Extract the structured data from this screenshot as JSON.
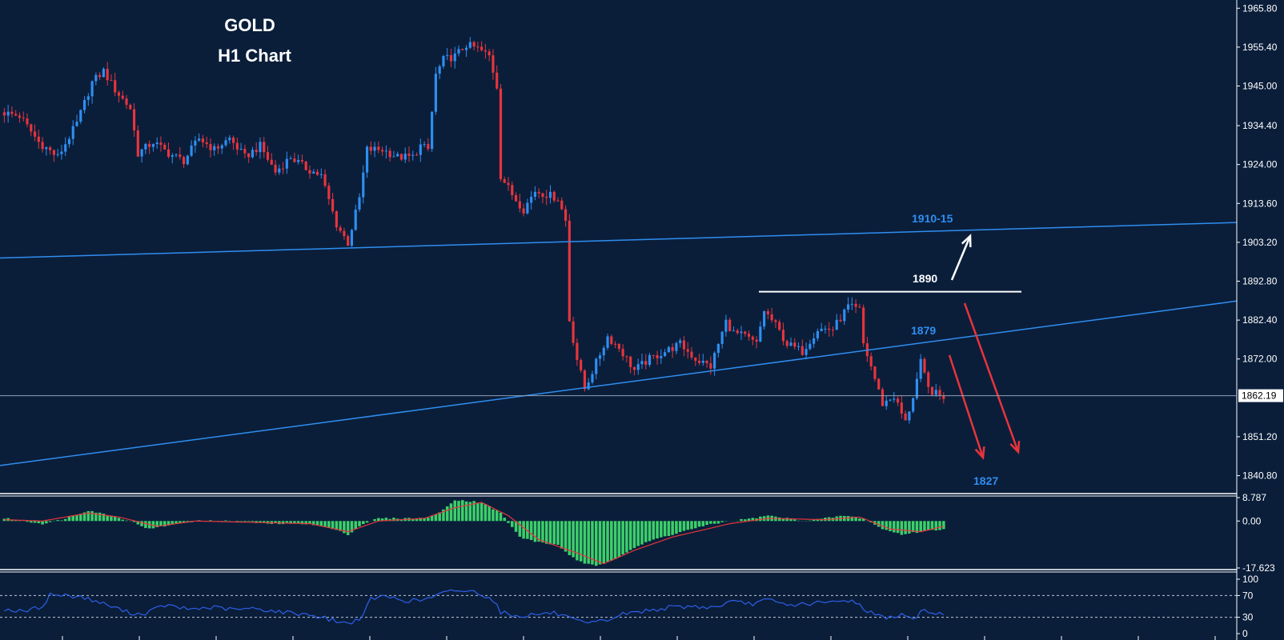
{
  "title": {
    "line1": "GOLD",
    "line2": "H1 Chart"
  },
  "colors": {
    "background": "#0a1e3a",
    "bull_candle": "#2f8ef0",
    "bear_candle": "#e8343c",
    "trendline": "#2f8ef0",
    "level_label": "#2f8ef0",
    "resistance_line": "#ffffff",
    "histogram": "#3ccf6a",
    "signal_line": "#e8343c",
    "rsi_line": "#2f5ee8",
    "separator": "#ffffff",
    "current_price_line": "#8fa0b8"
  },
  "price_axis": {
    "ticks": [
      "1965.80",
      "1955.40",
      "1945.00",
      "1934.40",
      "1924.00",
      "1913.60",
      "1903.20",
      "1892.80",
      "1882.40",
      "1872.00",
      "1851.20",
      "1840.80"
    ],
    "current_price": "1862.19"
  },
  "macd_axis": {
    "ticks": [
      "8.787",
      "0.00",
      "-17.623"
    ]
  },
  "rsi_axis": {
    "ticks": [
      "100",
      "70",
      "30",
      "0"
    ]
  },
  "annotations": {
    "upper_channel": "1910-15",
    "resistance": "1890",
    "trendline_level": "1879",
    "target": "1827"
  },
  "chart_data": [
    {
      "type": "candlestick",
      "title": "GOLD H1 Chart",
      "ylim": [
        1836,
        1968
      ],
      "price_path": [
        [
          0,
          1938
        ],
        [
          5,
          1937
        ],
        [
          10,
          1930
        ],
        [
          15,
          1926
        ],
        [
          20,
          1935
        ],
        [
          24,
          1946
        ],
        [
          27,
          1949
        ],
        [
          30,
          1944
        ],
        [
          34,
          1939
        ],
        [
          36,
          1927
        ],
        [
          40,
          1930
        ],
        [
          44,
          1927
        ],
        [
          48,
          1925
        ],
        [
          52,
          1931
        ],
        [
          56,
          1928
        ],
        [
          60,
          1931
        ],
        [
          64,
          1926
        ],
        [
          68,
          1929
        ],
        [
          72,
          1922
        ],
        [
          76,
          1926
        ],
        [
          80,
          1923
        ],
        [
          84,
          1921
        ],
        [
          88,
          1908
        ],
        [
          91,
          1903
        ],
        [
          94,
          1915
        ],
        [
          96,
          1928
        ],
        [
          100,
          1928
        ],
        [
          104,
          1926
        ],
        [
          108,
          1926
        ],
        [
          110,
          1929
        ],
        [
          112,
          1928
        ],
        [
          114,
          1948
        ],
        [
          116,
          1952
        ],
        [
          119,
          1953
        ],
        [
          122,
          1956
        ],
        [
          125,
          1955
        ],
        [
          128,
          1953
        ],
        [
          130,
          1945
        ],
        [
          131,
          1921
        ],
        [
          134,
          1916
        ],
        [
          137,
          1912
        ],
        [
          140,
          1917
        ],
        [
          143,
          1916
        ],
        [
          146,
          1915
        ],
        [
          148,
          1909
        ],
        [
          148.5,
          1885
        ],
        [
          151,
          1872
        ],
        [
          153,
          1864
        ],
        [
          156,
          1871
        ],
        [
          159,
          1878
        ],
        [
          162,
          1875
        ],
        [
          166,
          1869
        ],
        [
          170,
          1872
        ],
        [
          174,
          1874
        ],
        [
          178,
          1876
        ],
        [
          182,
          1872
        ],
        [
          186,
          1870
        ],
        [
          190,
          1882
        ],
        [
          192,
          1879
        ],
        [
          195,
          1878
        ],
        [
          198,
          1876
        ],
        [
          200,
          1885
        ],
        [
          203,
          1881
        ],
        [
          206,
          1876
        ],
        [
          210,
          1874
        ],
        [
          214,
          1880
        ],
        [
          218,
          1880
        ],
        [
          222,
          1886
        ],
        [
          225,
          1885
        ],
        [
          226,
          1876
        ],
        [
          228,
          1870
        ],
        [
          231,
          1860
        ],
        [
          234,
          1862
        ],
        [
          237,
          1855
        ],
        [
          239,
          1862
        ],
        [
          241,
          1871
        ],
        [
          243,
          1864
        ],
        [
          246,
          1862
        ]
      ],
      "n_bars": 247
    },
    {
      "type": "bar",
      "title": "",
      "ylim": [
        -17.623,
        8.787
      ],
      "values": [
        [
          0,
          1
        ],
        [
          10,
          -1
        ],
        [
          15,
          0.5
        ],
        [
          22,
          4
        ],
        [
          28,
          2
        ],
        [
          33,
          0
        ],
        [
          38,
          -3
        ],
        [
          45,
          -1
        ],
        [
          50,
          0
        ],
        [
          60,
          0
        ],
        [
          70,
          -1
        ],
        [
          80,
          -1
        ],
        [
          86,
          -3
        ],
        [
          90,
          -5
        ],
        [
          94,
          -1
        ],
        [
          98,
          1
        ],
        [
          104,
          1
        ],
        [
          110,
          1
        ],
        [
          114,
          3
        ],
        [
          118,
          8
        ],
        [
          125,
          7
        ],
        [
          130,
          3
        ],
        [
          135,
          -6
        ],
        [
          140,
          -8
        ],
        [
          145,
          -9
        ],
        [
          150,
          -15
        ],
        [
          155,
          -17
        ],
        [
          160,
          -14
        ],
        [
          165,
          -10
        ],
        [
          170,
          -7
        ],
        [
          175,
          -5
        ],
        [
          180,
          -3
        ],
        [
          186,
          -1
        ],
        [
          190,
          0
        ],
        [
          196,
          1
        ],
        [
          200,
          2
        ],
        [
          205,
          1
        ],
        [
          210,
          0
        ],
        [
          215,
          1
        ],
        [
          220,
          2
        ],
        [
          225,
          1
        ],
        [
          230,
          -3
        ],
        [
          235,
          -5
        ],
        [
          240,
          -4
        ],
        [
          246,
          -3
        ]
      ],
      "signal": [
        [
          0,
          0.5
        ],
        [
          10,
          0
        ],
        [
          22,
          3
        ],
        [
          30,
          1.5
        ],
        [
          40,
          -2
        ],
        [
          50,
          0
        ],
        [
          80,
          -1
        ],
        [
          90,
          -4
        ],
        [
          98,
          0
        ],
        [
          110,
          1
        ],
        [
          118,
          5
        ],
        [
          125,
          7
        ],
        [
          132,
          2
        ],
        [
          140,
          -7
        ],
        [
          150,
          -12
        ],
        [
          157,
          -16
        ],
        [
          165,
          -11
        ],
        [
          175,
          -6
        ],
        [
          190,
          -1
        ],
        [
          200,
          1
        ],
        [
          215,
          0.5
        ],
        [
          224,
          1.5
        ],
        [
          232,
          -3
        ],
        [
          240,
          -4
        ],
        [
          246,
          -2
        ]
      ]
    },
    {
      "type": "line",
      "title": "",
      "ylim": [
        0,
        100
      ],
      "series": [
        {
          "values": [
            [
              0,
              45
            ],
            [
              5,
              40
            ],
            [
              10,
              50
            ],
            [
              12,
              72
            ],
            [
              20,
              68
            ],
            [
              26,
              55
            ],
            [
              32,
              40
            ],
            [
              36,
              35
            ],
            [
              42,
              52
            ],
            [
              48,
              45
            ],
            [
              55,
              48
            ],
            [
              60,
              44
            ],
            [
              66,
              46
            ],
            [
              72,
              40
            ],
            [
              80,
              35
            ],
            [
              86,
              25
            ],
            [
              90,
              18
            ],
            [
              94,
              32
            ],
            [
              96,
              65
            ],
            [
              100,
              68
            ],
            [
              106,
              60
            ],
            [
              110,
              62
            ],
            [
              114,
              72
            ],
            [
              118,
              80
            ],
            [
              124,
              76
            ],
            [
              128,
              62
            ],
            [
              130,
              40
            ],
            [
              134,
              32
            ],
            [
              140,
              36
            ],
            [
              144,
              38
            ],
            [
              148,
              28
            ],
            [
              150,
              22
            ],
            [
              153,
              18
            ],
            [
              158,
              25
            ],
            [
              162,
              36
            ],
            [
              168,
              42
            ],
            [
              174,
              48
            ],
            [
              180,
              50
            ],
            [
              186,
              48
            ],
            [
              190,
              58
            ],
            [
              196,
              55
            ],
            [
              200,
              62
            ],
            [
              205,
              52
            ],
            [
              210,
              55
            ],
            [
              218,
              58
            ],
            [
              222,
              62
            ],
            [
              226,
              42
            ],
            [
              230,
              30
            ],
            [
              236,
              34
            ],
            [
              238,
              25
            ],
            [
              241,
              45
            ],
            [
              244,
              35
            ],
            [
              246,
              38
            ]
          ]
        }
      ],
      "levels": [
        70,
        30
      ]
    }
  ]
}
